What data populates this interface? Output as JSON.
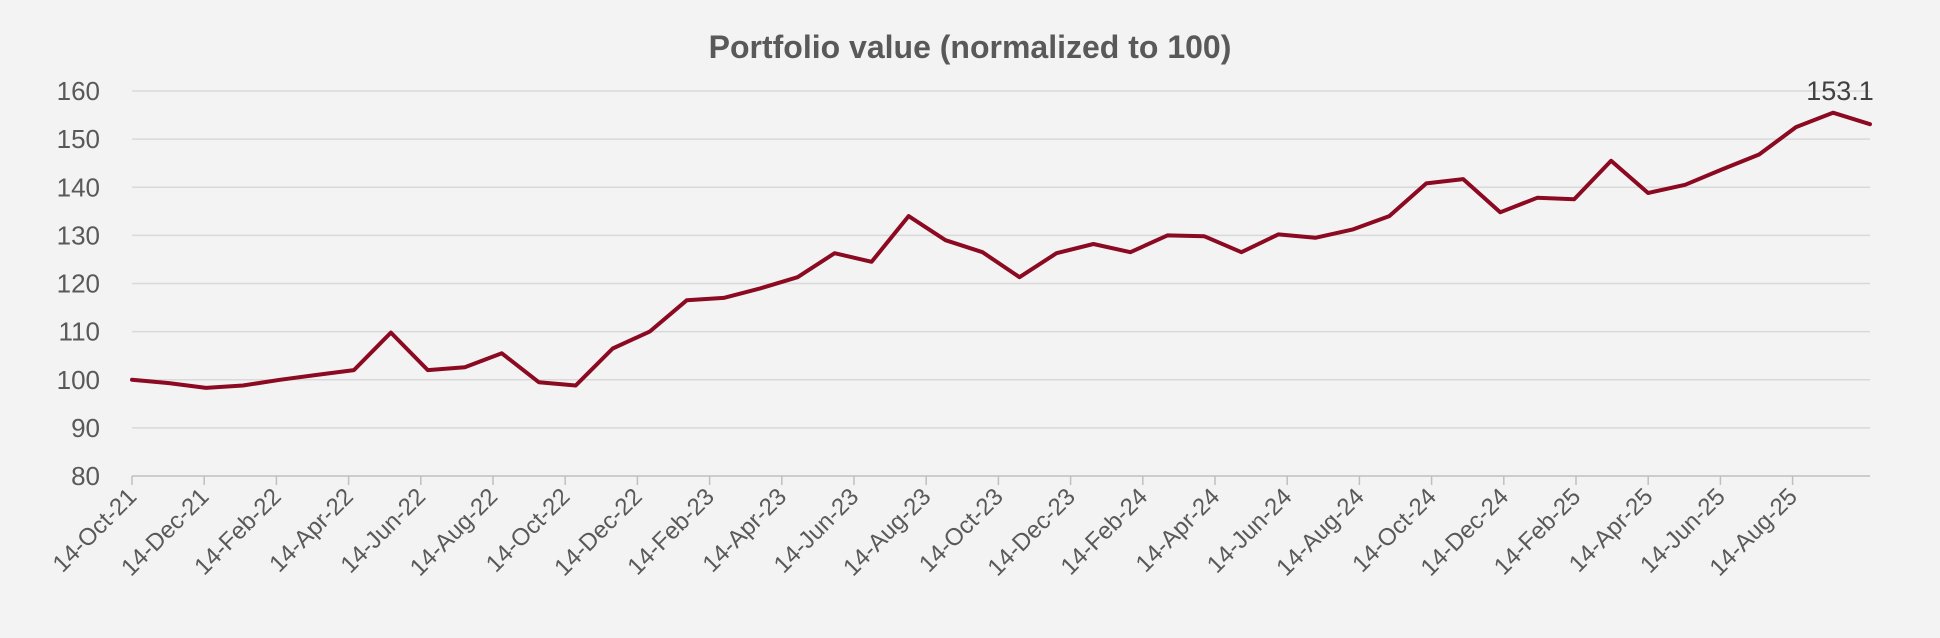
{
  "chart_data": {
    "type": "line",
    "title": "Portfolio value (normalized to 100)",
    "xlabel": "",
    "ylabel": "",
    "ylim": [
      80,
      160
    ],
    "yticks": [
      80,
      90,
      100,
      110,
      120,
      130,
      140,
      150,
      160
    ],
    "grid": true,
    "legend": "none",
    "xtick_labels": [
      "14-Oct-21",
      "14-Dec-21",
      "14-Feb-22",
      "14-Apr-22",
      "14-Jun-22",
      "14-Aug-22",
      "14-Oct-22",
      "14-Dec-22",
      "14-Feb-23",
      "14-Apr-23",
      "14-Jun-23",
      "14-Aug-23",
      "14-Oct-23",
      "14-Dec-23",
      "14-Feb-24",
      "14-Apr-24",
      "14-Jun-24",
      "14-Aug-24",
      "14-Oct-24",
      "14-Dec-24",
      "14-Feb-25",
      "14-Apr-25",
      "14-Jun-25",
      "14-Aug-25"
    ],
    "end_label": "153.1",
    "series": [
      {
        "name": "Portfolio value",
        "color": "#8b0a22",
        "values": [
          100.0,
          99.3,
          98.3,
          98.8,
          100.0,
          101.0,
          102.0,
          109.8,
          102.0,
          102.6,
          105.5,
          99.5,
          98.8,
          106.5,
          110.0,
          116.5,
          117.0,
          119.0,
          121.3,
          126.3,
          124.5,
          134.0,
          129.0,
          126.5,
          121.3,
          126.3,
          128.2,
          126.5,
          130.0,
          129.8,
          126.5,
          130.2,
          129.5,
          131.2,
          134.0,
          140.8,
          141.7,
          134.8,
          137.8,
          137.5,
          145.5,
          138.8,
          140.5,
          143.7,
          146.8,
          152.5,
          155.5,
          153.1
        ]
      }
    ]
  }
}
